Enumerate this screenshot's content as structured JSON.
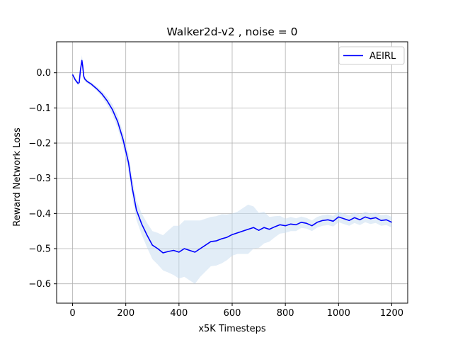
{
  "chart_data": {
    "type": "line",
    "title": "Walker2d-v2 , noise = 0",
    "xlabel": "x5K Timesteps",
    "ylabel": "Reward Network Loss",
    "xlim": [
      -60,
      1260
    ],
    "ylim": [
      -0.655,
      0.088
    ],
    "xticks": [
      0,
      200,
      400,
      600,
      800,
      1000,
      1200
    ],
    "yticks": [
      0.0,
      -0.1,
      -0.2,
      -0.3,
      -0.4,
      -0.5,
      -0.6
    ],
    "grid": true,
    "legend_position": "top-right",
    "series": [
      {
        "name": "AEIRL",
        "color": "#0000ff",
        "band_color": "#c6dbef",
        "x": [
          0,
          10,
          20,
          25,
          30,
          35,
          38,
          42,
          46,
          55,
          70,
          90,
          110,
          130,
          150,
          170,
          190,
          210,
          225,
          240,
          260,
          280,
          300,
          320,
          340,
          360,
          380,
          400,
          420,
          440,
          460,
          480,
          500,
          520,
          540,
          560,
          580,
          600,
          620,
          640,
          660,
          680,
          700,
          720,
          740,
          760,
          780,
          800,
          820,
          840,
          860,
          880,
          900,
          920,
          940,
          960,
          980,
          1000,
          1020,
          1040,
          1060,
          1080,
          1100,
          1120,
          1140,
          1160,
          1180,
          1200
        ],
        "values": [
          -0.005,
          -0.02,
          -0.03,
          -0.028,
          0.01,
          0.035,
          0.02,
          -0.01,
          -0.018,
          -0.025,
          -0.032,
          -0.045,
          -0.06,
          -0.08,
          -0.105,
          -0.14,
          -0.19,
          -0.255,
          -0.33,
          -0.39,
          -0.43,
          -0.462,
          -0.49,
          -0.5,
          -0.512,
          -0.508,
          -0.505,
          -0.51,
          -0.5,
          -0.505,
          -0.51,
          -0.5,
          -0.49,
          -0.48,
          -0.478,
          -0.472,
          -0.468,
          -0.46,
          -0.455,
          -0.45,
          -0.445,
          -0.44,
          -0.448,
          -0.44,
          -0.445,
          -0.438,
          -0.432,
          -0.435,
          -0.43,
          -0.432,
          -0.425,
          -0.428,
          -0.435,
          -0.425,
          -0.42,
          -0.418,
          -0.422,
          -0.41,
          -0.415,
          -0.42,
          -0.412,
          -0.418,
          -0.41,
          -0.415,
          -0.412,
          -0.42,
          -0.418,
          -0.425
        ],
        "band": [
          0.005,
          0.005,
          0.005,
          0.006,
          0.01,
          0.015,
          0.012,
          0.008,
          0.006,
          0.005,
          0.005,
          0.006,
          0.008,
          0.012,
          0.015,
          0.018,
          0.02,
          0.025,
          0.028,
          0.028,
          0.03,
          0.035,
          0.04,
          0.045,
          0.05,
          0.06,
          0.07,
          0.075,
          0.08,
          0.085,
          0.09,
          0.08,
          0.075,
          0.07,
          0.07,
          0.07,
          0.065,
          0.06,
          0.06,
          0.065,
          0.07,
          0.06,
          0.05,
          0.045,
          0.035,
          0.03,
          0.025,
          0.02,
          0.02,
          0.018,
          0.016,
          0.015,
          0.015,
          0.015,
          0.015,
          0.015,
          0.015,
          0.015,
          0.015,
          0.015,
          0.015,
          0.015,
          0.015,
          0.015,
          0.015,
          0.015,
          0.015,
          0.015
        ]
      }
    ]
  }
}
